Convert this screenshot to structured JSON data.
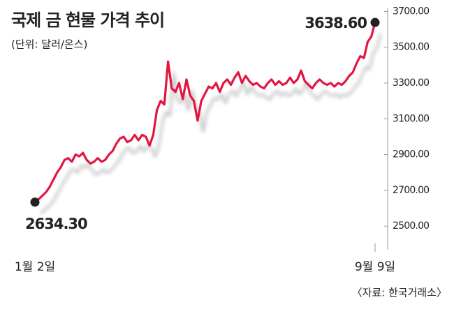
{
  "chart_data": {
    "type": "line",
    "title": "국제 금 현물 가격 추이",
    "subtitle": "(단위: 달러/온스)",
    "source": "〈자료: 한국거래소〉",
    "categories": [
      "1월 2일",
      null,
      null,
      null,
      null,
      null,
      null,
      null,
      null,
      null,
      null,
      null,
      null,
      null,
      null,
      null,
      null,
      null,
      null,
      null,
      null,
      null,
      null,
      null,
      null,
      null,
      null,
      null,
      null,
      null,
      null,
      null,
      null,
      null,
      null,
      null,
      null,
      null,
      null,
      null,
      null,
      null,
      null,
      null,
      null,
      null,
      null,
      null,
      null,
      null,
      null,
      null,
      null,
      null,
      null,
      null,
      null,
      null,
      null,
      null,
      null,
      null,
      null,
      null,
      null,
      null,
      null,
      null,
      null,
      null,
      null,
      null,
      null,
      null,
      null,
      null,
      null,
      null,
      null,
      null,
      null,
      null,
      null,
      null,
      null,
      null,
      null,
      null,
      null,
      null,
      null,
      null,
      "9월 9일"
    ],
    "values": [
      2634.3,
      2650,
      2670,
      2690,
      2720,
      2760,
      2800,
      2830,
      2870,
      2880,
      2860,
      2900,
      2890,
      2910,
      2870,
      2850,
      2860,
      2880,
      2860,
      2870,
      2900,
      2920,
      2960,
      2990,
      3000,
      2970,
      2980,
      3010,
      2980,
      3010,
      3000,
      2950,
      3010,
      3150,
      3200,
      3180,
      3420,
      3270,
      3250,
      3300,
      3210,
      3320,
      3230,
      3200,
      3090,
      3200,
      3240,
      3280,
      3270,
      3300,
      3250,
      3300,
      3320,
      3290,
      3330,
      3360,
      3300,
      3340,
      3310,
      3290,
      3300,
      3280,
      3270,
      3300,
      3320,
      3290,
      3310,
      3290,
      3300,
      3330,
      3300,
      3320,
      3370,
      3310,
      3290,
      3270,
      3300,
      3320,
      3300,
      3290,
      3300,
      3280,
      3300,
      3290,
      3310,
      3340,
      3360,
      3410,
      3450,
      3440,
      3530,
      3560,
      3638.6
    ],
    "value_labels": [
      "2634.30",
      null,
      null,
      null,
      null,
      null,
      null,
      null,
      null,
      null,
      null,
      null,
      null,
      null,
      null,
      null,
      null,
      null,
      null,
      null,
      null,
      null,
      null,
      null,
      null,
      null,
      null,
      null,
      null,
      null,
      null,
      null,
      null,
      null,
      null,
      null,
      null,
      null,
      null,
      null,
      null,
      null,
      null,
      null,
      null,
      null,
      null,
      null,
      null,
      null,
      null,
      null,
      null,
      null,
      null,
      null,
      null,
      null,
      null,
      null,
      null,
      null,
      null,
      null,
      null,
      null,
      null,
      null,
      null,
      null,
      null,
      null,
      null,
      null,
      null,
      null,
      null,
      null,
      null,
      null,
      null,
      null,
      null,
      null,
      null,
      null,
      null,
      null,
      null,
      null,
      null,
      null,
      "3638.60"
    ],
    "color": "#e3173f",
    "ylim": [
      2380,
      3725
    ],
    "yticks": [
      {
        "value": 2500,
        "label": "2500.00"
      },
      {
        "value": 2700,
        "label": "2700.00"
      },
      {
        "value": 2900,
        "label": "2900.00"
      },
      {
        "value": 3100,
        "label": "3100.00"
      },
      {
        "value": 3300,
        "label": "3300.00"
      },
      {
        "value": 3500,
        "label": "3500.00"
      },
      {
        "value": 3700,
        "label": "3700.00"
      }
    ]
  }
}
